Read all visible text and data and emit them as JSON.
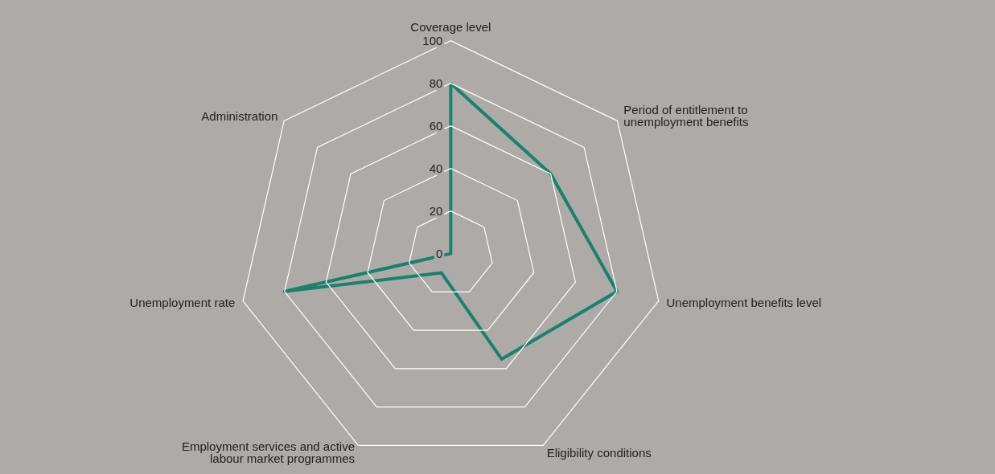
{
  "chart_data": {
    "type": "radar",
    "categories": [
      "Coverage level",
      "Period of entitlement to unemployment benefits",
      "Unemployment benefits level",
      "Eligibility conditions",
      "Employment services and active labour market programmes",
      "Unemployment rate",
      "Administration"
    ],
    "series": [
      {
        "color": "#16826f",
        "values": [
          80,
          60,
          80,
          55,
          10,
          80,
          0
        ]
      }
    ],
    "ylim": [
      0,
      100
    ],
    "yticks": [
      0,
      20,
      40,
      60,
      80,
      100
    ],
    "grid": true,
    "marker": "none",
    "line_style": "solid"
  }
}
